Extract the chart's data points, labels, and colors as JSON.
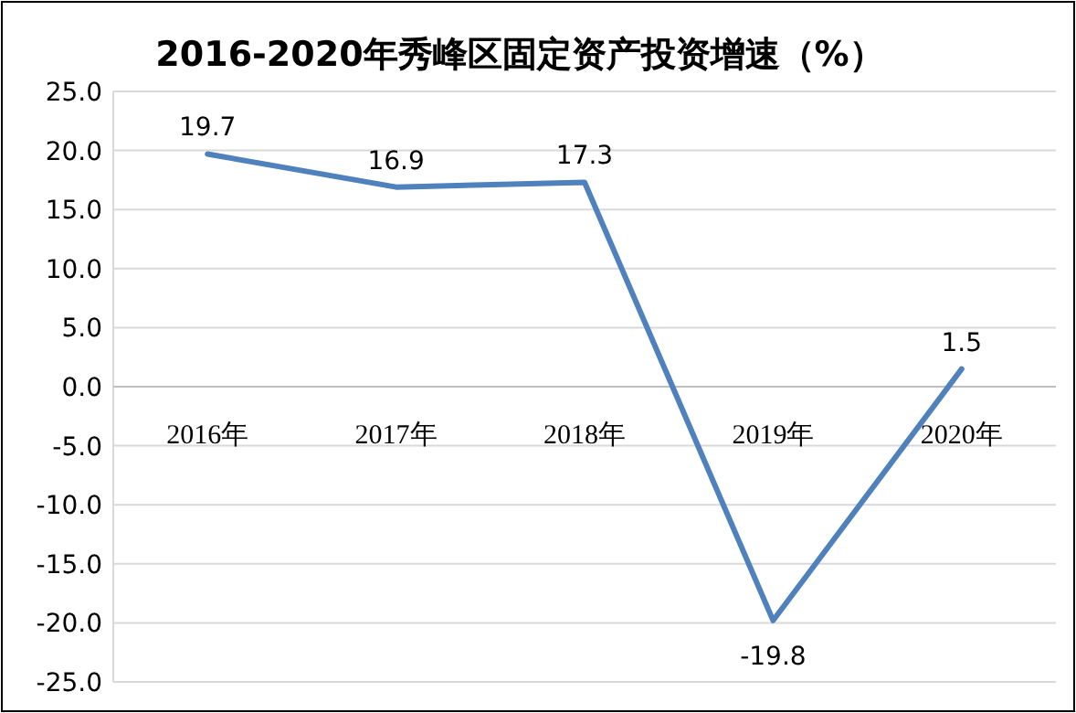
{
  "chart_data": {
    "type": "line",
    "title": "2016-2020年秀峰区固定资产投资增速（%）",
    "categories": [
      "2016年",
      "2017年",
      "2018年",
      "2019年",
      "2020年"
    ],
    "series": [
      {
        "color": "#4f81bd",
        "values": [
          19.7,
          16.9,
          17.3,
          -19.8,
          1.5
        ]
      }
    ],
    "ylim": [
      -25,
      25
    ],
    "yticks": [
      {
        "value": -25,
        "label": "-25.0"
      },
      {
        "value": -20,
        "label": "-20.0"
      },
      {
        "value": -15,
        "label": "-15.0"
      },
      {
        "value": -10,
        "label": "-10.0"
      },
      {
        "value": -5,
        "label": "-5.0"
      },
      {
        "value": 0,
        "label": "0.0"
      },
      {
        "value": 5,
        "label": "5.0"
      },
      {
        "value": 10,
        "label": "10.0"
      },
      {
        "value": 15,
        "label": "15.0"
      },
      {
        "value": 20,
        "label": "20.0"
      },
      {
        "value": 25,
        "label": "25.0"
      }
    ],
    "grid": "y",
    "data_labels": true,
    "marker": "none",
    "line_style": "solid"
  }
}
